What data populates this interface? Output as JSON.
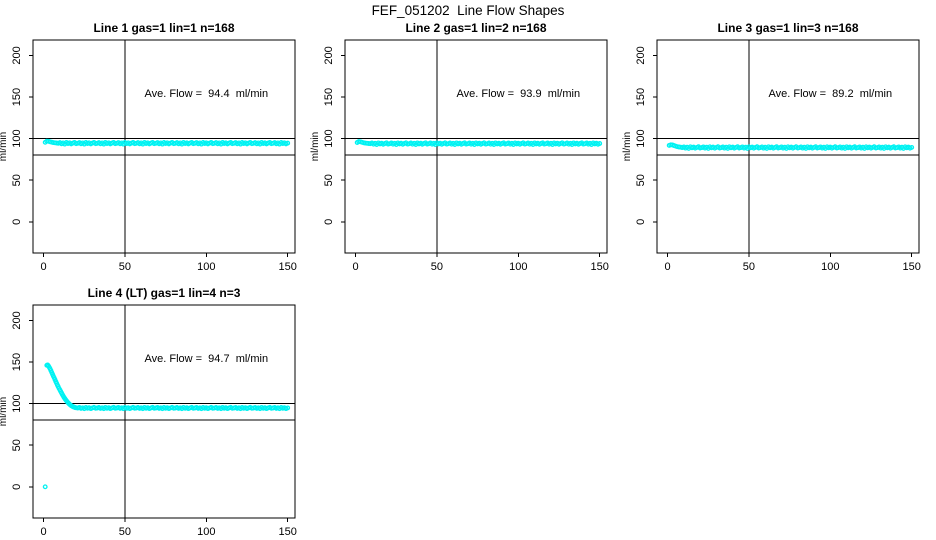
{
  "chart_data": {
    "type": "scatter",
    "title": "FEF_051202  Line Flow Shapes",
    "ylabel": "ml/min",
    "xlabel": "",
    "point_color": "#00F2F2",
    "axis_color": "#000000",
    "x_ticks": [
      0,
      50,
      100,
      150
    ],
    "y_ticks": [
      0,
      50,
      100,
      150,
      200
    ],
    "xlim": [
      -6.5,
      154.5
    ],
    "ylim": [
      -37.5,
      218.5
    ],
    "grid": false,
    "reference": {
      "vline_x": 50,
      "hlines_y": [
        100,
        80.5
      ]
    },
    "annotation_anchor": {
      "x": 100,
      "y": 150
    },
    "x_common": [
      1,
      2,
      3,
      4,
      5,
      6,
      7,
      8,
      9,
      10,
      11,
      12,
      13,
      14,
      15,
      16,
      17,
      18,
      19,
      20,
      21,
      22,
      23,
      24,
      25,
      26,
      27,
      28,
      29,
      30,
      31,
      32,
      33,
      34,
      35,
      36,
      37,
      38,
      39,
      40,
      41,
      42,
      43,
      44,
      45,
      46,
      47,
      48,
      49,
      50,
      51,
      52,
      53,
      54,
      55,
      56,
      57,
      58,
      59,
      60,
      61,
      62,
      63,
      64,
      65,
      66,
      67,
      68,
      69,
      70,
      71,
      72,
      73,
      74,
      75,
      76,
      77,
      78,
      79,
      80,
      81,
      82,
      83,
      84,
      85,
      86,
      87,
      88,
      89,
      90,
      91,
      92,
      93,
      94,
      95,
      96,
      97,
      98,
      99,
      100,
      101,
      102,
      103,
      104,
      105,
      106,
      107,
      108,
      109,
      110,
      111,
      112,
      113,
      114,
      115,
      116,
      117,
      118,
      119,
      120,
      121,
      122,
      123,
      124,
      125,
      126,
      127,
      128,
      129,
      130,
      131,
      132,
      133,
      134,
      135,
      136,
      137,
      138,
      139,
      140,
      141,
      142,
      143,
      144,
      145,
      146,
      147,
      148,
      149,
      150
    ],
    "panels": [
      {
        "title": "Line 1 gas=1 lin=1 n=168",
        "annotation": "Ave. Flow =  94.4  ml/min",
        "avg_flow_ml_min": 94.4,
        "row": 0,
        "col": 0,
        "x": "common",
        "y": [
          95.6,
          96.9,
          96.7,
          96.2,
          95.7,
          95.2,
          94.9,
          94.7,
          94.4,
          95.2,
          93.8,
          94.8,
          93.4,
          95.3,
          94.1,
          95.0,
          93.6,
          94.6,
          95.4,
          93.9,
          94.4,
          95.2,
          93.8,
          94.8,
          93.4,
          95.3,
          94.1,
          95.0,
          93.6,
          94.6,
          95.4,
          93.9,
          94.4,
          95.2,
          93.8,
          94.8,
          93.4,
          95.3,
          94.1,
          95.0,
          93.6,
          94.6,
          95.4,
          93.9,
          94.4,
          95.2,
          93.8,
          94.8,
          93.4,
          95.3,
          94.1,
          95.0,
          93.6,
          94.6,
          95.4,
          93.9,
          94.4,
          95.2,
          93.8,
          94.8,
          93.4,
          95.3,
          94.1,
          95.0,
          93.6,
          94.6,
          95.4,
          93.9,
          94.4,
          95.2,
          93.8,
          94.8,
          93.4,
          95.3,
          94.1,
          95.0,
          93.6,
          94.6,
          95.4,
          93.9,
          94.4,
          95.2,
          93.8,
          94.8,
          93.4,
          95.3,
          94.1,
          95.0,
          93.6,
          94.6,
          95.4,
          93.9,
          94.4,
          95.2,
          93.8,
          94.8,
          93.4,
          95.3,
          94.1,
          95.0,
          93.6,
          94.6,
          95.4,
          93.9,
          94.4,
          95.2,
          93.8,
          94.8,
          93.4,
          95.3,
          94.1,
          95.0,
          93.6,
          94.6,
          95.4,
          93.9,
          94.4,
          95.2,
          93.8,
          94.8,
          93.4,
          95.3,
          94.1,
          95.0,
          93.6,
          94.6,
          95.4,
          93.9,
          94.4,
          95.2,
          93.8,
          94.8,
          93.4,
          95.3,
          94.1,
          95.0,
          93.6,
          94.6,
          95.4,
          93.9,
          94.4,
          95.2,
          93.8,
          94.8,
          93.4,
          95.3,
          94.1,
          95.0,
          93.6,
          94.6
        ]
      },
      {
        "title": "Line 2 gas=1 lin=2 n=168",
        "annotation": "Ave. Flow =  93.9  ml/min",
        "avg_flow_ml_min": 93.9,
        "row": 0,
        "col": 1,
        "x": "common",
        "y": [
          95.3,
          96.4,
          96.2,
          95.6,
          95.0,
          94.6,
          94.3,
          94.1,
          93.9,
          94.7,
          93.3,
          94.3,
          92.9,
          94.8,
          93.6,
          94.5,
          93.1,
          94.1,
          94.9,
          93.4,
          93.9,
          94.7,
          93.3,
          94.3,
          92.9,
          94.8,
          93.6,
          94.5,
          93.1,
          94.1,
          94.9,
          93.4,
          93.9,
          94.7,
          93.3,
          94.3,
          92.9,
          94.8,
          93.6,
          94.5,
          93.1,
          94.1,
          94.9,
          93.4,
          93.9,
          94.7,
          93.3,
          94.3,
          92.9,
          94.8,
          93.6,
          94.5,
          93.1,
          94.1,
          94.9,
          93.4,
          93.9,
          94.7,
          93.3,
          94.3,
          92.9,
          94.8,
          93.6,
          94.5,
          93.1,
          94.1,
          94.9,
          93.4,
          93.9,
          94.7,
          93.3,
          94.3,
          92.9,
          94.8,
          93.6,
          94.5,
          93.1,
          94.1,
          94.9,
          93.4,
          93.9,
          94.7,
          93.3,
          94.3,
          92.9,
          94.8,
          93.6,
          94.5,
          93.1,
          94.1,
          94.9,
          93.4,
          93.9,
          94.7,
          93.3,
          94.3,
          92.9,
          94.8,
          93.6,
          94.5,
          93.1,
          94.1,
          94.9,
          93.4,
          93.9,
          94.7,
          93.3,
          94.3,
          92.9,
          94.8,
          93.6,
          94.5,
          93.1,
          94.1,
          94.9,
          93.4,
          93.9,
          94.7,
          93.3,
          94.3,
          92.9,
          94.8,
          93.6,
          94.5,
          93.1,
          94.1,
          94.9,
          93.4,
          93.9,
          94.7,
          93.3,
          94.3,
          92.9,
          94.8,
          93.6,
          94.5,
          93.1,
          94.1,
          94.9,
          93.4,
          93.9,
          94.7,
          93.3,
          94.3,
          92.9,
          94.8,
          93.6,
          94.5,
          93.1,
          94.1
        ]
      },
      {
        "title": "Line 3 gas=1 lin=3 n=168",
        "annotation": "Ave. Flow =  89.2  ml/min",
        "avg_flow_ml_min": 89.2,
        "row": 0,
        "col": 2,
        "x": "common",
        "y": [
          91.8,
          92.6,
          92.3,
          91.6,
          90.9,
          90.3,
          89.9,
          89.6,
          89.2,
          90.0,
          88.6,
          89.6,
          88.2,
          90.1,
          88.9,
          89.8,
          88.4,
          89.4,
          90.2,
          88.7,
          89.2,
          90.0,
          88.6,
          89.6,
          88.2,
          90.1,
          88.9,
          89.8,
          88.4,
          89.4,
          90.2,
          88.7,
          89.2,
          90.0,
          88.6,
          89.6,
          88.2,
          90.1,
          88.9,
          89.8,
          88.4,
          89.4,
          90.2,
          88.7,
          89.2,
          90.0,
          88.6,
          89.6,
          88.2,
          90.1,
          88.9,
          89.8,
          88.4,
          89.4,
          90.2,
          88.7,
          89.2,
          90.0,
          88.6,
          89.6,
          88.2,
          90.1,
          88.9,
          89.8,
          88.4,
          89.4,
          90.2,
          88.7,
          89.2,
          90.0,
          88.6,
          89.6,
          88.2,
          90.1,
          88.9,
          89.8,
          88.4,
          89.4,
          90.2,
          88.7,
          89.2,
          90.0,
          88.6,
          89.6,
          88.2,
          90.1,
          88.9,
          89.8,
          88.4,
          89.4,
          90.2,
          88.7,
          89.2,
          90.0,
          88.6,
          89.6,
          88.2,
          90.1,
          88.9,
          89.8,
          88.4,
          89.4,
          90.2,
          88.7,
          89.2,
          90.0,
          88.6,
          89.6,
          88.2,
          90.1,
          88.9,
          89.8,
          88.4,
          89.4,
          90.2,
          88.7,
          89.2,
          90.0,
          88.6,
          89.6,
          88.2,
          90.1,
          88.9,
          89.8,
          88.4,
          89.4,
          90.2,
          88.7,
          89.2,
          90.0,
          88.6,
          89.6,
          88.2,
          90.1,
          88.9,
          89.8,
          88.4,
          89.4,
          90.2,
          88.7,
          89.2,
          90.0,
          88.6,
          89.6,
          88.2,
          90.1,
          88.9,
          89.8,
          88.4,
          89.4
        ]
      },
      {
        "title": "Line 4 (LT) gas=1 lin=4 n=3",
        "annotation": "Ave. Flow =  94.7  ml/min",
        "avg_flow_ml_min": 94.7,
        "row": 1,
        "col": 0,
        "x": [
          1,
          2,
          2.5,
          3,
          3.5,
          4,
          4.5,
          5,
          5.5,
          6,
          6.5,
          7,
          7.5,
          8,
          8.5,
          9,
          9.5,
          10,
          10.5,
          11,
          11.5,
          12,
          12.5,
          13,
          13.5,
          14,
          14.5,
          15,
          15.5,
          16,
          16.5,
          17,
          17.5,
          18,
          18.5,
          19,
          19.5,
          20,
          21,
          22,
          23,
          24,
          25,
          26,
          27,
          28,
          29,
          30,
          31,
          32,
          33,
          34,
          35,
          36,
          37,
          38,
          39,
          40,
          41,
          42,
          43,
          44,
          45,
          46,
          47,
          48,
          49,
          50,
          51,
          52,
          53,
          54,
          55,
          56,
          57,
          58,
          59,
          60,
          61,
          62,
          63,
          64,
          65,
          66,
          67,
          68,
          69,
          70,
          71,
          72,
          73,
          74,
          75,
          76,
          77,
          78,
          79,
          80,
          81,
          82,
          83,
          84,
          85,
          86,
          87,
          88,
          89,
          90,
          91,
          92,
          93,
          94,
          95,
          96,
          97,
          98,
          99,
          100,
          101,
          102,
          103,
          104,
          105,
          106,
          107,
          108,
          109,
          110,
          111,
          112,
          113,
          114,
          115,
          116,
          117,
          118,
          119,
          120,
          121,
          122,
          123,
          124,
          125,
          126,
          127,
          128,
          129,
          130,
          131,
          132,
          133,
          134,
          135,
          136,
          137,
          138,
          139,
          140,
          141,
          142,
          143,
          144,
          145,
          146,
          147,
          148,
          149,
          150
        ],
        "y": [
          0,
          146.0,
          146.5,
          145.2,
          143.6,
          141.8,
          139.8,
          137.6,
          135.4,
          133.2,
          131.0,
          128.8,
          126.6,
          124.5,
          122.4,
          120.4,
          118.4,
          116.5,
          114.6,
          112.8,
          111.1,
          109.4,
          107.8,
          106.3,
          104.9,
          103.5,
          102.3,
          101.1,
          100.1,
          99.1,
          98.3,
          97.5,
          96.9,
          96.3,
          95.9,
          95.5,
          95.2,
          95.0,
          94.7,
          95.3,
          94.2,
          95.0,
          93.9,
          95.4,
          94.4,
          95.1,
          94.0,
          94.8,
          95.5,
          94.3,
          94.7,
          95.3,
          94.2,
          95.0,
          93.9,
          95.4,
          94.4,
          95.1,
          94.0,
          94.8,
          95.5,
          94.3,
          94.7,
          95.3,
          94.2,
          95.0,
          93.9,
          95.4,
          94.4,
          95.1,
          94.0,
          94.8,
          95.5,
          94.3,
          94.7,
          95.3,
          94.2,
          95.0,
          93.9,
          95.4,
          94.4,
          95.1,
          94.0,
          94.8,
          95.5,
          94.3,
          94.7,
          95.3,
          94.2,
          95.0,
          93.9,
          95.4,
          94.4,
          95.1,
          94.0,
          94.8,
          95.5,
          94.3,
          94.7,
          95.3,
          94.2,
          95.0,
          93.9,
          95.4,
          94.4,
          95.1,
          94.0,
          94.8,
          95.5,
          94.3,
          94.7,
          95.3,
          94.2,
          95.0,
          93.9,
          95.4,
          94.4,
          95.1,
          94.0,
          94.8,
          95.5,
          94.3,
          94.7,
          95.3,
          94.2,
          95.0,
          93.9,
          95.4,
          94.4,
          95.1,
          94.0,
          94.8,
          95.5,
          94.3,
          94.7,
          95.3,
          94.2,
          95.0,
          93.9,
          95.4,
          94.4,
          95.1,
          94.0,
          94.8,
          95.5,
          94.3,
          94.7,
          95.3,
          94.2,
          95.0,
          93.9,
          95.4,
          94.4,
          95.1,
          94.0,
          94.8,
          95.5,
          94.3,
          94.7,
          95.3,
          94.2,
          95.0,
          93.9,
          95.4,
          94.4,
          95.1,
          94.0,
          94.8
        ]
      }
    ]
  }
}
